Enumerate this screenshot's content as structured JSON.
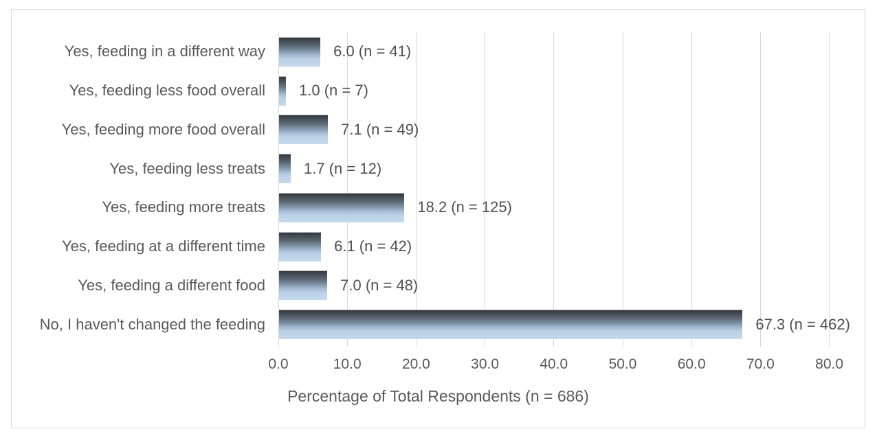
{
  "chart_data": {
    "type": "bar",
    "orientation": "horizontal",
    "title": "",
    "xlabel": "Percentage of Total Respondents (n = 686)",
    "ylabel": "",
    "xlim": [
      0,
      80
    ],
    "xticks": [
      0,
      10,
      20,
      30,
      40,
      50,
      60,
      70,
      80
    ],
    "xtick_labels": [
      "0.0",
      "10.0",
      "20.0",
      "30.0",
      "40.0",
      "50.0",
      "60.0",
      "70.0",
      "80.0"
    ],
    "grid": "vertical-gridlines-on",
    "legend": "none",
    "total_n": 686,
    "categories": [
      "Yes, feeding in a different way",
      "Yes, feeding less food overall",
      "Yes, feeding more food overall",
      "Yes, feeding less treats",
      "Yes, feeding more treats",
      "Yes, feeding at a different time",
      "Yes, feeding a different food",
      "No, I haven't changed the feeding"
    ],
    "values": [
      6.0,
      1.0,
      7.1,
      1.7,
      18.2,
      6.1,
      7.0,
      67.3
    ],
    "counts": [
      41,
      7,
      49,
      12,
      125,
      42,
      48,
      462
    ],
    "data_labels": [
      "6.0 (n = 41)",
      "1.0 (n = 7)",
      "7.1 (n = 49)",
      "1.7 (n = 12)",
      "18.2 (n = 125)",
      "6.1 (n = 42)",
      "7.0 (n = 48)",
      "67.3 (n = 462)"
    ]
  },
  "colors": {
    "background": "#ffffff",
    "chart_border": "#d9d9d9",
    "gridline": "#d9d9d9",
    "text": "#595959",
    "data_label_text": "#4f4f4f",
    "bar_gradient_top": "#34383d",
    "bar_gradient_mid": "#7e93a8",
    "bar_gradient_bottom": "#c5d9ec"
  }
}
